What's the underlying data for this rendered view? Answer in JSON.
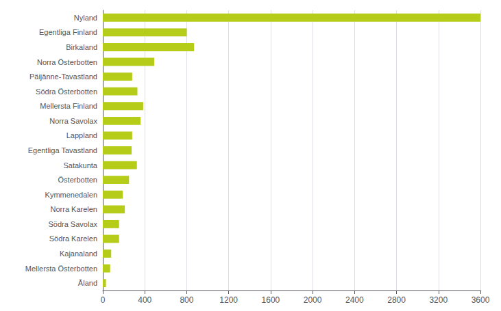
{
  "chart_data": {
    "type": "bar",
    "orientation": "horizontal",
    "categories": [
      "Nyland",
      "Egentliga Finland",
      "Birkaland",
      "Norra Österbotten",
      "Päijänne-Tavastland",
      "Södra Österbotten",
      "Mellersta Finland",
      "Norra Savolax",
      "Lappland",
      "Egentliga Tavastland",
      "Satakunta",
      "Österbotten",
      "Kymmenedalen",
      "Norra Karelen",
      "Södra Savolax",
      "Södra Karelen",
      "Kajanaland",
      "Mellersta Österbotten",
      "Åland"
    ],
    "values": [
      3600,
      800,
      870,
      490,
      280,
      330,
      385,
      360,
      280,
      275,
      325,
      250,
      190,
      210,
      155,
      155,
      80,
      70,
      30
    ],
    "color": "#b5cc18",
    "xlim": [
      0,
      3600
    ],
    "xticks": [
      0,
      400,
      800,
      1200,
      1600,
      2000,
      2400,
      2800,
      3200,
      3600
    ],
    "grid": true
  }
}
